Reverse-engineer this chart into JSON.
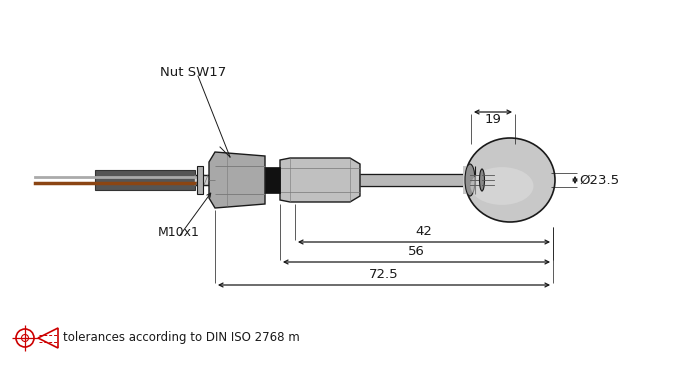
{
  "bg_color": "#ffffff",
  "line_color": "#1a1a1a",
  "dim_color": "#1a1a1a",
  "gray_light": "#d8d8d8",
  "gray_mid": "#b0b0b0",
  "gray_dark": "#787878",
  "gray_hex": "#a8a8a8",
  "gray_body": "#c0c0c0",
  "gray_dome": "#c8c8c8",
  "gray_shaft": "#b8b8b8",
  "black_oring": "#1a1a1a",
  "red_color": "#cc0000",
  "brown_wire": "#8B4513",
  "silver_wire": "#909090",
  "annotations": {
    "dim_72_5": "72.5",
    "dim_56": "56",
    "dim_42": "42",
    "dim_19": "19",
    "dim_dia": "Ø23.5",
    "label_m10": "M10x1",
    "label_nut": "Nut SW17"
  },
  "tolerance_text": "tolerances according to DIN ISO 2768 m",
  "figsize": [
    6.9,
    3.7
  ],
  "dpi": 100
}
